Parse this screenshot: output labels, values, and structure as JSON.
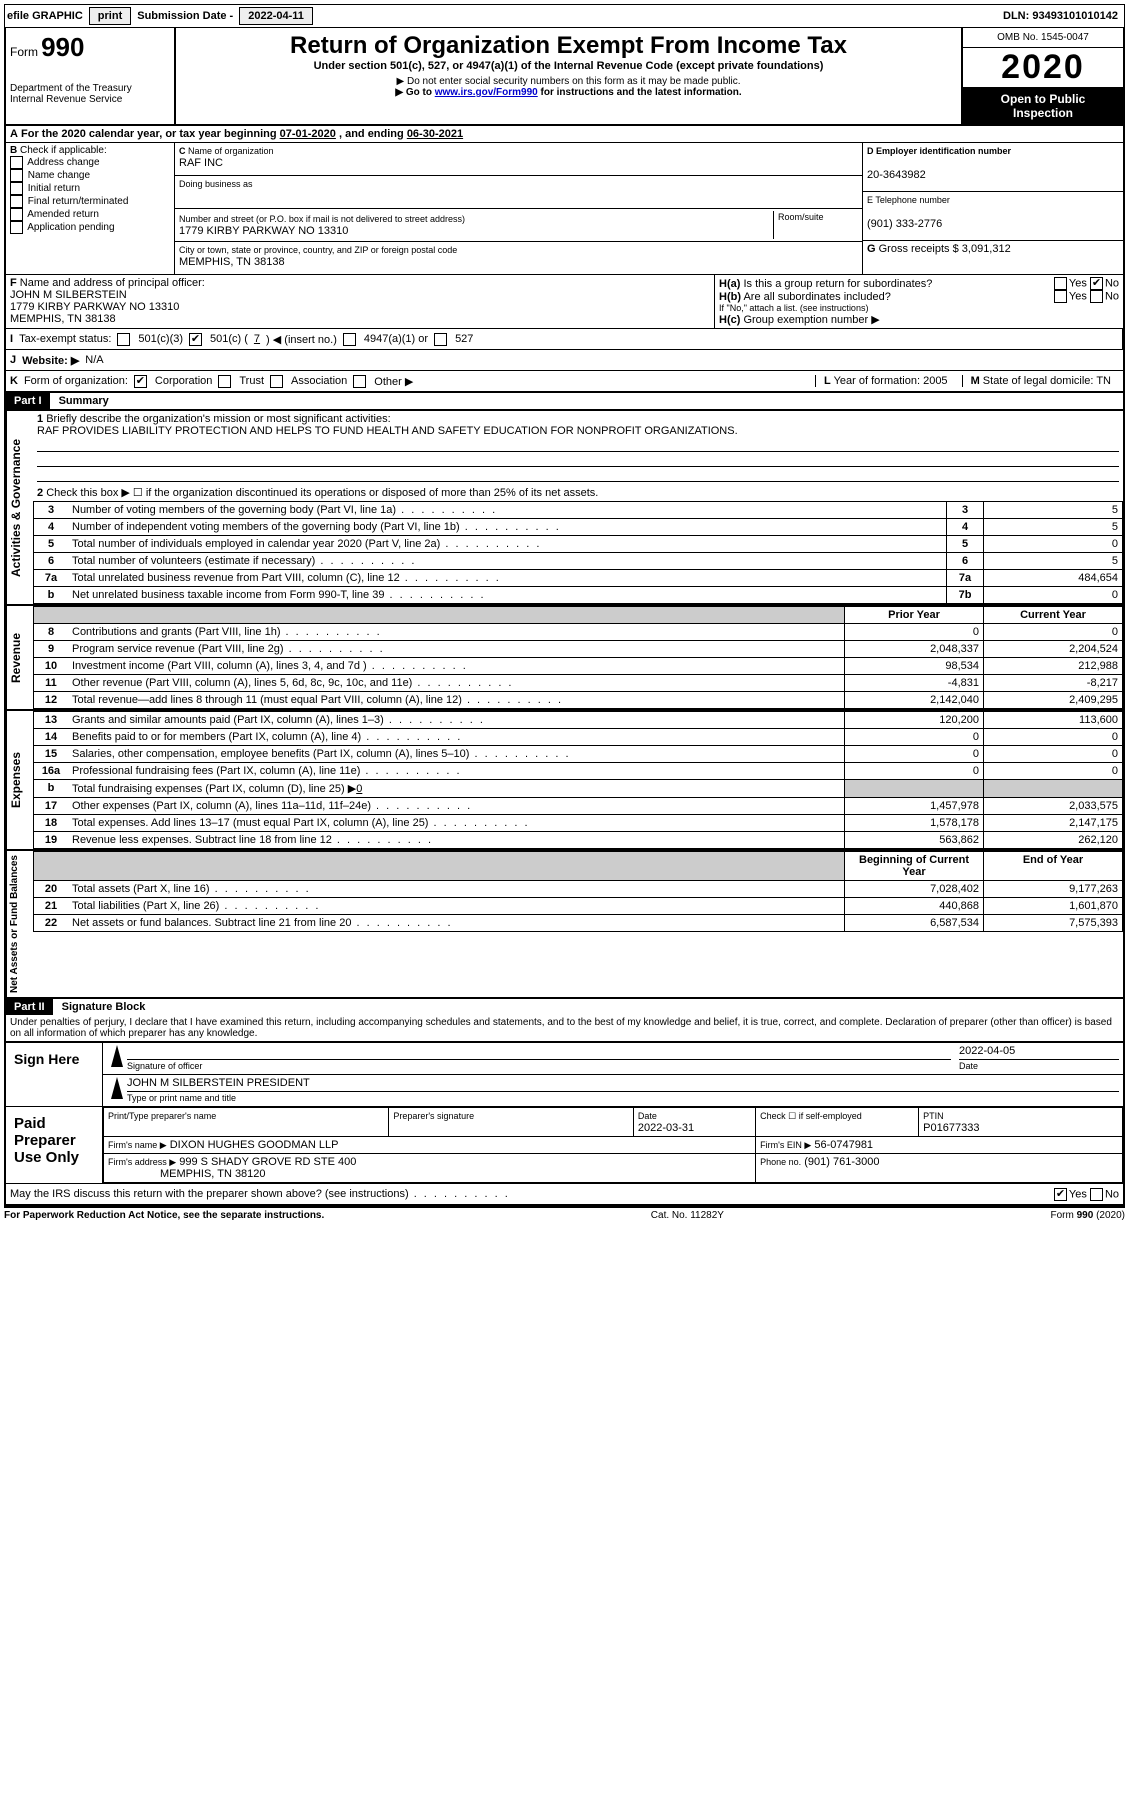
{
  "topbar": {
    "efile_label": "efile GRAPHIC",
    "print_btn": "print",
    "submission_label": "Submission Date -",
    "submission_date": "2022-04-11",
    "dln_label": "DLN:",
    "dln": "93493101010142"
  },
  "header": {
    "form_word": "Form",
    "form_number": "990",
    "dept1": "Department of the Treasury",
    "dept2": "Internal Revenue Service",
    "title": "Return of Organization Exempt From Income Tax",
    "subtitle": "Under section 501(c), 527, or 4947(a)(1) of the Internal Revenue Code (except private foundations)",
    "note1_arrow": "▶",
    "note1": "Do not enter social security numbers on this form as it may be made public.",
    "note2_arrow": "▶",
    "note2_pre": "Go to ",
    "note2_link": "www.irs.gov/Form990",
    "note2_post": " for instructions and the latest information.",
    "omb": "OMB No. 1545-0047",
    "year": "2020",
    "inspect1": "Open to Public",
    "inspect2": "Inspection"
  },
  "row_a": {
    "prefix": "A",
    "text_pre": "For the 2020 calendar year, or tax year beginning ",
    "begin": "07-01-2020",
    "mid": ", and ending ",
    "end": "06-30-2021"
  },
  "col_b": {
    "header": "B",
    "check_label": "Check if applicable:",
    "items": [
      "Address change",
      "Name change",
      "Initial return",
      "Final return/terminated",
      "Amended return",
      "Application pending"
    ]
  },
  "col_c": {
    "c_label": "C",
    "name_label": "Name of organization",
    "name": "RAF INC",
    "dba_label": "Doing business as",
    "addr_label": "Number and street (or P.O. box if mail is not delivered to street address)",
    "room_label": "Room/suite",
    "addr": "1779 KIRBY PARKWAY NO 13310",
    "city_label": "City or town, state or province, country, and ZIP or foreign postal code",
    "city": "MEMPHIS, TN  38138"
  },
  "col_de": {
    "d_label": "D Employer identification number",
    "ein": "20-3643982",
    "e_label": "E Telephone number",
    "phone": "(901) 333-2776",
    "g_label": "G",
    "g_text": "Gross receipts $",
    "g_val": "3,091,312"
  },
  "f": {
    "label": "F",
    "text": "Name and address of principal officer:",
    "name": "JOHN M SILBERSTEIN",
    "addr": "1779 KIRBY PARKWAY NO 13310",
    "city": "MEMPHIS, TN  38138"
  },
  "h": {
    "ha_label": "H(a)",
    "ha_text": "Is this a group return for subordinates?",
    "ha_yes": "Yes",
    "ha_no": "No",
    "hb_label": "H(b)",
    "hb_text": "Are all subordinates included?",
    "hb_note": "If \"No,\" attach a list. (see instructions)",
    "hc_label": "H(c)",
    "hc_text": "Group exemption number ▶"
  },
  "i": {
    "label": "I",
    "text": "Tax-exempt status:",
    "opt1": "501(c)(3)",
    "opt2_pre": "501(c) (",
    "opt2_val": "7",
    "opt2_post": ") ◀ (insert no.)",
    "opt3": "4947(a)(1) or",
    "opt4": "527"
  },
  "j": {
    "label": "J",
    "text": "Website: ▶",
    "val": "N/A"
  },
  "k": {
    "label": "K",
    "text": "Form of organization:",
    "opts": [
      "Corporation",
      "Trust",
      "Association",
      "Other ▶"
    ]
  },
  "l": {
    "label": "L",
    "text": "Year of formation:",
    "val": "2005"
  },
  "m": {
    "label": "M",
    "text": "State of legal domicile:",
    "val": "TN"
  },
  "part1": {
    "header": "Part I",
    "title": "Summary",
    "sections": {
      "governance": "Activities & Governance",
      "revenue": "Revenue",
      "expenses": "Expenses",
      "netassets": "Net Assets or Fund Balances"
    },
    "line1_label": "1",
    "line1_text": "Briefly describe the organization's mission or most significant activities:",
    "line1_val": "RAF PROVIDES LIABILITY PROTECTION AND HELPS TO FUND HEALTH AND SAFETY EDUCATION FOR NONPROFIT ORGANIZATIONS.",
    "line2_label": "2",
    "line2_text": "Check this box ▶ ☐  if the organization discontinued its operations or disposed of more than 25% of its net assets.",
    "gov_rows": [
      {
        "no": "3",
        "desc": "Number of voting members of the governing body (Part VI, line 1a)",
        "col": "3",
        "val": "5"
      },
      {
        "no": "4",
        "desc": "Number of independent voting members of the governing body (Part VI, line 1b)",
        "col": "4",
        "val": "5"
      },
      {
        "no": "5",
        "desc": "Total number of individuals employed in calendar year 2020 (Part V, line 2a)",
        "col": "5",
        "val": "0"
      },
      {
        "no": "6",
        "desc": "Total number of volunteers (estimate if necessary)",
        "col": "6",
        "val": "5"
      },
      {
        "no": "7a",
        "desc": "Total unrelated business revenue from Part VIII, column (C), line 12",
        "col": "7a",
        "val": "484,654"
      },
      {
        "no": "b",
        "desc": "Net unrelated business taxable income from Form 990-T, line 39",
        "col": "7b",
        "val": "0"
      }
    ],
    "prior_year": "Prior Year",
    "current_year": "Current Year",
    "rev_rows": [
      {
        "no": "8",
        "desc": "Contributions and grants (Part VIII, line 1h)",
        "py": "0",
        "cy": "0"
      },
      {
        "no": "9",
        "desc": "Program service revenue (Part VIII, line 2g)",
        "py": "2,048,337",
        "cy": "2,204,524"
      },
      {
        "no": "10",
        "desc": "Investment income (Part VIII, column (A), lines 3, 4, and 7d )",
        "py": "98,534",
        "cy": "212,988"
      },
      {
        "no": "11",
        "desc": "Other revenue (Part VIII, column (A), lines 5, 6d, 8c, 9c, 10c, and 11e)",
        "py": "-4,831",
        "cy": "-8,217"
      },
      {
        "no": "12",
        "desc": "Total revenue—add lines 8 through 11 (must equal Part VIII, column (A), line 12)",
        "py": "2,142,040",
        "cy": "2,409,295"
      }
    ],
    "exp_rows": [
      {
        "no": "13",
        "desc": "Grants and similar amounts paid (Part IX, column (A), lines 1–3)",
        "py": "120,200",
        "cy": "113,600"
      },
      {
        "no": "14",
        "desc": "Benefits paid to or for members (Part IX, column (A), line 4)",
        "py": "0",
        "cy": "0"
      },
      {
        "no": "15",
        "desc": "Salaries, other compensation, employee benefits (Part IX, column (A), lines 5–10)",
        "py": "0",
        "cy": "0"
      },
      {
        "no": "16a",
        "desc": "Professional fundraising fees (Part IX, column (A), line 11e)",
        "py": "0",
        "cy": "0"
      }
    ],
    "line16b_no": "b",
    "line16b_desc_pre": "Total fundraising expenses (Part IX, column (D), line 25) ▶",
    "line16b_val": "0",
    "exp_rows2": [
      {
        "no": "17",
        "desc": "Other expenses (Part IX, column (A), lines 11a–11d, 11f–24e)",
        "py": "1,457,978",
        "cy": "2,033,575"
      },
      {
        "no": "18",
        "desc": "Total expenses. Add lines 13–17 (must equal Part IX, column (A), line 25)",
        "py": "1,578,178",
        "cy": "2,147,175"
      },
      {
        "no": "19",
        "desc": "Revenue less expenses. Subtract line 18 from line 12",
        "py": "563,862",
        "cy": "262,120"
      }
    ],
    "begin_year": "Beginning of Current Year",
    "end_year": "End of Year",
    "net_rows": [
      {
        "no": "20",
        "desc": "Total assets (Part X, line 16)",
        "py": "7,028,402",
        "cy": "9,177,263"
      },
      {
        "no": "21",
        "desc": "Total liabilities (Part X, line 26)",
        "py": "440,868",
        "cy": "1,601,870"
      },
      {
        "no": "22",
        "desc": "Net assets or fund balances. Subtract line 21 from line 20",
        "py": "6,587,534",
        "cy": "7,575,393"
      }
    ]
  },
  "part2": {
    "header": "Part II",
    "title": "Signature Block",
    "jurat": "Under penalties of perjury, I declare that I have examined this return, including accompanying schedules and statements, and to the best of my knowledge and belief, it is true, correct, and complete. Declaration of preparer (other than officer) is based on all information of which preparer has any knowledge."
  },
  "sign": {
    "here": "Sign Here",
    "sig_label": "Signature of officer",
    "date_label": "Date",
    "date_val": "2022-04-05",
    "name": "JOHN M SILBERSTEIN  PRESIDENT",
    "name_label": "Type or print name and title"
  },
  "paid": {
    "label": "Paid Preparer Use Only",
    "print_label": "Print/Type preparer's name",
    "sig_label": "Preparer's signature",
    "date_label": "Date",
    "date_val": "2022-03-31",
    "check_label": "Check ☐ if self-employed",
    "ptin_label": "PTIN",
    "ptin_val": "P01677333",
    "firm_name_label": "Firm's name   ▶",
    "firm_name": "DIXON HUGHES GOODMAN LLP",
    "firm_ein_label": "Firm's EIN ▶",
    "firm_ein": "56-0747981",
    "firm_addr_label": "Firm's address ▶",
    "firm_addr1": "999 S SHADY GROVE RD STE 400",
    "firm_addr2": "MEMPHIS, TN  38120",
    "phone_label": "Phone no.",
    "phone": "(901) 761-3000"
  },
  "discuss": {
    "text": "May the IRS discuss this return with the preparer shown above? (see instructions)",
    "yes": "Yes",
    "no": "No"
  },
  "footer": {
    "left": "For Paperwork Reduction Act Notice, see the separate instructions.",
    "center": "Cat. No. 11282Y",
    "right": "Form 990 (2020)"
  }
}
